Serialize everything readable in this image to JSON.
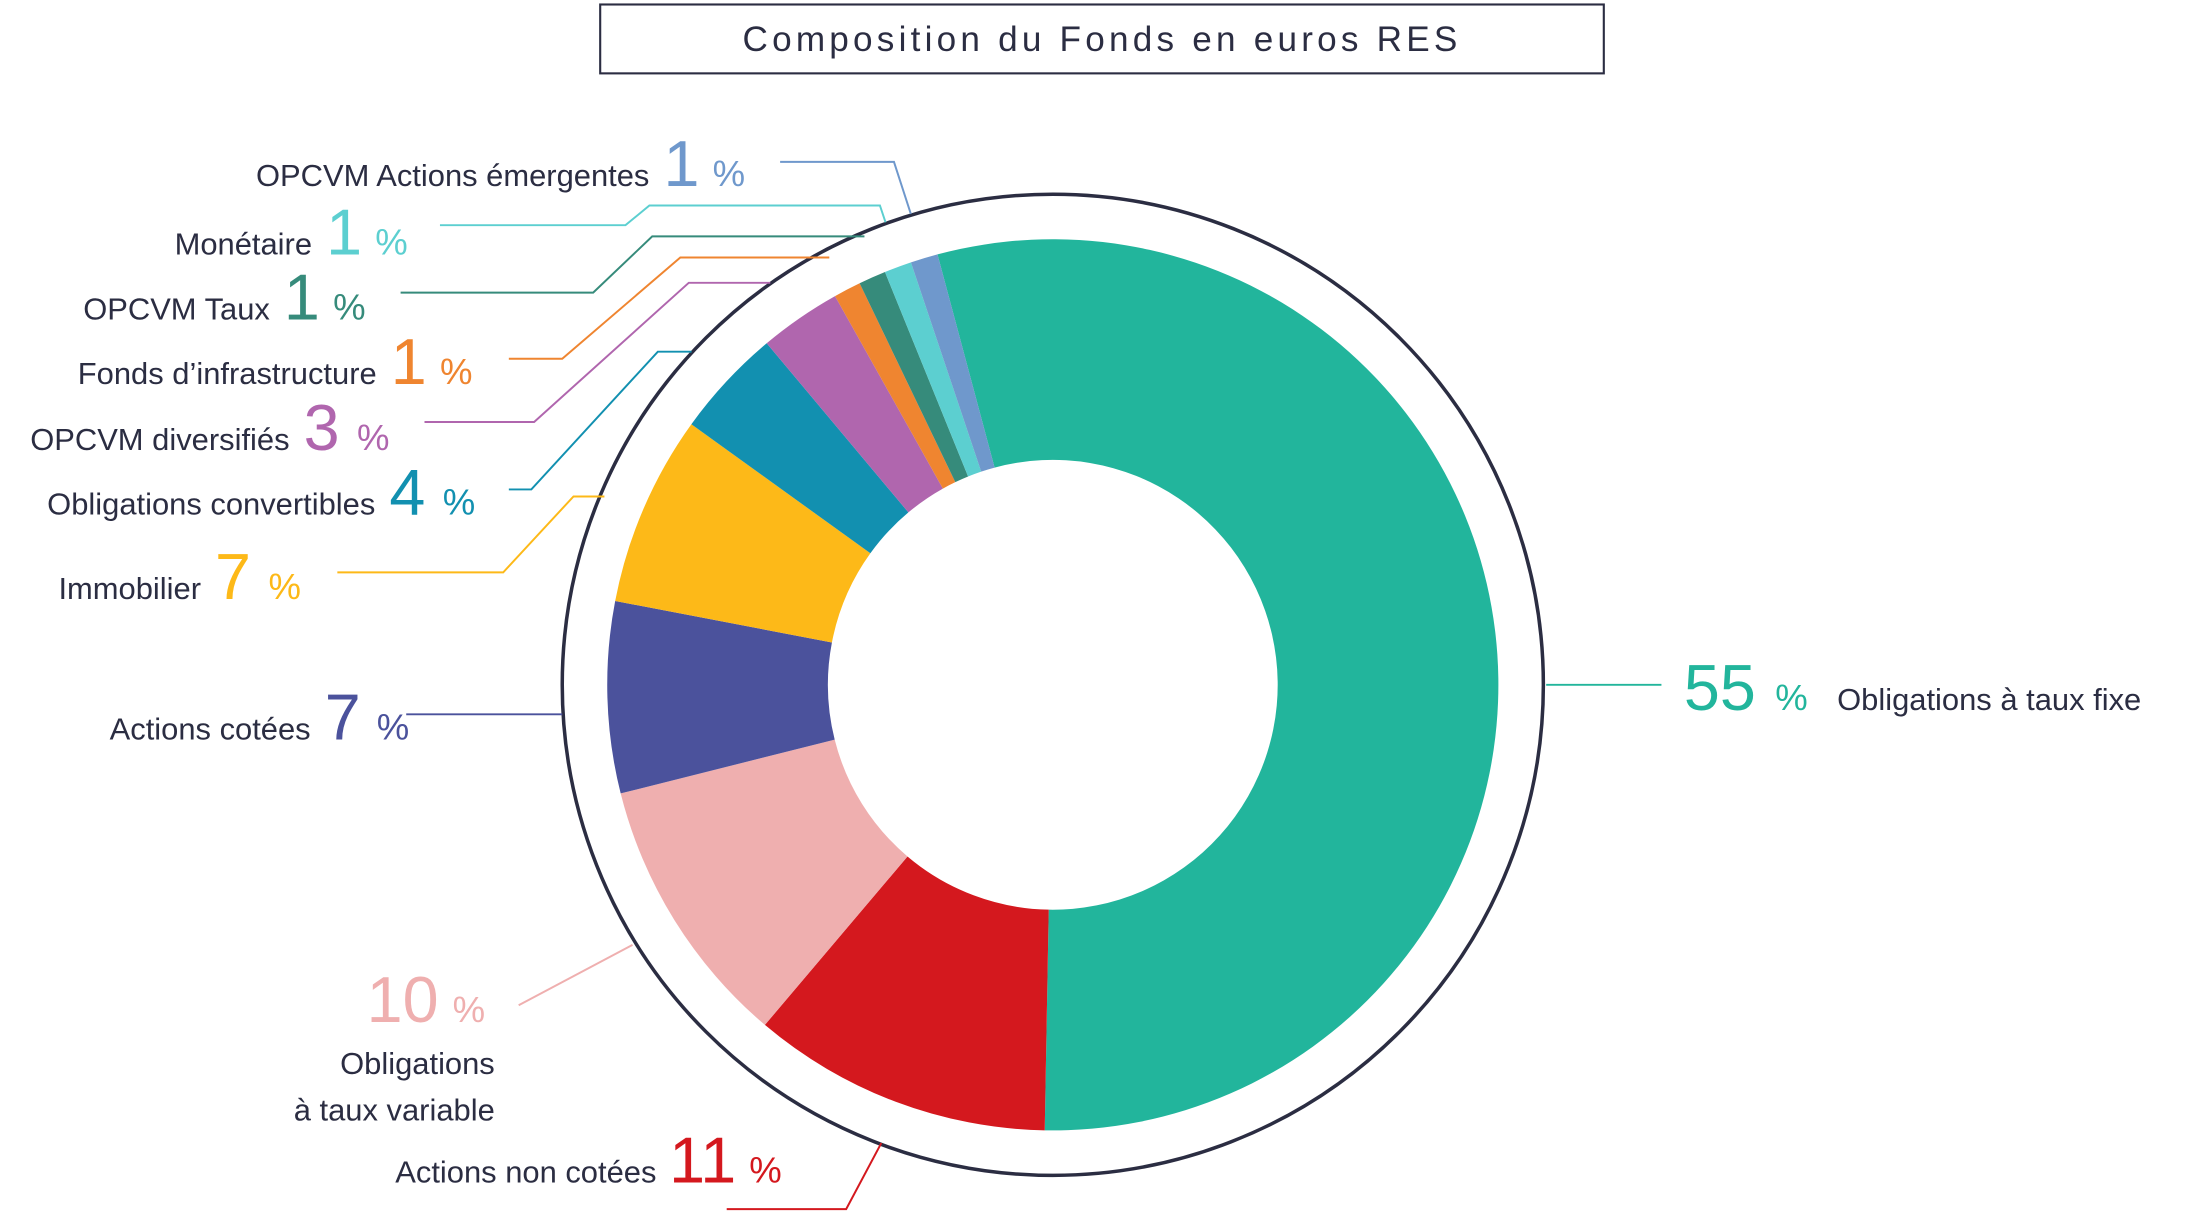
{
  "chart_data": {
    "type": "pie",
    "variant": "donut",
    "title": "Composition du Fonds en euros RES",
    "unit": "%",
    "slices": [
      {
        "id": "fixe",
        "label": "Obligations à taux fixe",
        "value": 55,
        "color": "#22b59c"
      },
      {
        "id": "noncotees",
        "label": "Actions non cotées",
        "value": 11,
        "color": "#d4181e"
      },
      {
        "id": "variable",
        "label_line1": "Obligations",
        "label_line2": "à taux variable",
        "value": 10,
        "color": "#efafaf"
      },
      {
        "id": "cotees",
        "label": "Actions cotées",
        "value": 7,
        "color": "#4b529c"
      },
      {
        "id": "immo",
        "label": "Immobilier",
        "value": 7,
        "color": "#fdb918"
      },
      {
        "id": "conv",
        "label": "Obligations convertibles",
        "value": 4,
        "color": "#1290b0"
      },
      {
        "id": "div",
        "label": "OPCVM diversifiés",
        "value": 3,
        "color": "#b066ae"
      },
      {
        "id": "infra",
        "label": "Fonds d’infrastructure",
        "value": 1,
        "color": "#ef8530"
      },
      {
        "id": "taux",
        "label": "OPCVM Taux",
        "value": 1,
        "color": "#368b7b"
      },
      {
        "id": "mone",
        "label": "Monétaire",
        "value": 1,
        "color": "#5ccfd0"
      },
      {
        "id": "emer",
        "label": "OPCVM Actions émergentes",
        "value": 1,
        "color": "#6f98cc"
      }
    ],
    "percent_sign": "%",
    "text_color": "#2b2d42",
    "ring_color": "#2b2d42"
  }
}
